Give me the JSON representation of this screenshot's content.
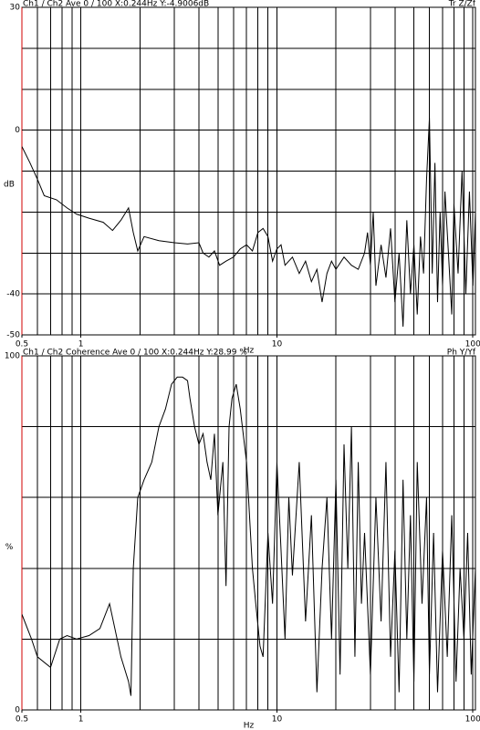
{
  "chart_data": [
    {
      "type": "line",
      "title": "Ch1 / Ch2  Ave 0 / 100  X:0.244Hz  Y:-4.9006dB",
      "mode_label": "Tr Z/Zf",
      "y_label": "dB",
      "x_label": "Hz",
      "x_scale": "log",
      "color": "#000000",
      "axis_color": "#d00000",
      "xlim": [
        0.5,
        103
      ],
      "xticks": [
        0.5,
        1,
        10,
        100
      ],
      "xgrid": [
        0.5,
        0.6,
        0.7,
        0.8,
        0.9,
        1,
        2,
        3,
        4,
        5,
        6,
        7,
        8,
        9,
        10,
        20,
        30,
        40,
        50,
        60,
        70,
        80,
        90,
        100
      ],
      "ylim": [
        -50,
        30
      ],
      "yticks": [
        -50,
        -40,
        0,
        30
      ],
      "ygrid": [
        -40,
        -30,
        -20,
        -10,
        0,
        10,
        20
      ],
      "x": [
        0.5,
        0.55,
        0.6,
        0.65,
        0.75,
        0.85,
        0.95,
        1.1,
        1.3,
        1.45,
        1.6,
        1.75,
        1.85,
        1.95,
        2.1,
        2.5,
        3,
        3.5,
        4,
        4.2,
        4.5,
        4.8,
        5.1,
        5.5,
        6,
        6.5,
        7,
        7.5,
        8,
        8.5,
        9,
        9.5,
        10,
        10.5,
        11,
        12,
        13,
        14,
        15,
        16,
        17,
        18,
        19,
        20,
        22,
        24,
        26,
        28,
        29,
        30,
        31,
        32,
        34,
        36,
        38,
        40,
        42,
        44,
        46,
        48,
        50,
        52,
        54,
        56,
        58,
        60,
        62,
        64,
        66,
        68,
        70,
        72,
        75,
        78,
        80,
        84,
        88,
        92,
        96,
        100,
        103
      ],
      "values": [
        -4,
        -8,
        -12,
        -16,
        -17,
        -19,
        -20.5,
        -21.5,
        -22.5,
        -24.5,
        -22,
        -19,
        -25,
        -29.5,
        -26,
        -27,
        -27.5,
        -27.8,
        -27.5,
        -30,
        -31,
        -29.5,
        -33,
        -32,
        -31,
        -29,
        -28,
        -29.5,
        -25,
        -24,
        -26,
        -32,
        -29,
        -28,
        -33,
        -31,
        -35,
        -32,
        -37,
        -34,
        -42,
        -35,
        -32,
        -34,
        -31,
        -33,
        -34,
        -30,
        -25,
        -33,
        -20,
        -38,
        -28,
        -36,
        -24,
        -42,
        -30,
        -48,
        -22,
        -40,
        -28,
        -45,
        -26,
        -35,
        -12,
        3,
        -35,
        -8,
        -42,
        -20,
        -38,
        -15,
        -30,
        -45,
        -18,
        -35,
        -10,
        -40,
        -15,
        -38,
        -20
      ]
    },
    {
      "type": "line",
      "title": "Ch1 / Ch2  Coherence Ave 0 / 100  X:0.244Hz  Y:28.99 %",
      "mode_label": "Ph Y/Yf",
      "y_label": "%",
      "x_label": "Hz",
      "x_scale": "log",
      "color": "#000000",
      "axis_color": "#d00000",
      "xlim": [
        0.5,
        103
      ],
      "xticks": [
        0.5,
        1,
        10,
        100
      ],
      "xgrid": [
        0.5,
        0.6,
        0.7,
        0.8,
        0.9,
        1,
        2,
        3,
        4,
        5,
        6,
        7,
        8,
        9,
        10,
        20,
        30,
        40,
        50,
        60,
        70,
        80,
        90,
        100
      ],
      "ylim": [
        0,
        100
      ],
      "yticks": [
        0,
        100
      ],
      "ygrid": [
        20,
        40,
        60,
        80
      ],
      "x": [
        0.5,
        0.56,
        0.6,
        0.7,
        0.78,
        0.85,
        0.95,
        1.1,
        1.25,
        1.4,
        1.6,
        1.75,
        1.8,
        1.85,
        1.95,
        2.1,
        2.3,
        2.5,
        2.7,
        2.9,
        3.1,
        3.3,
        3.5,
        3.6,
        3.8,
        4,
        4.2,
        4.4,
        4.6,
        4.8,
        5,
        5.3,
        5.5,
        5.7,
        5.9,
        6.2,
        6.5,
        7,
        7.5,
        7.8,
        8.2,
        8.5,
        9,
        9.5,
        10,
        10.5,
        11,
        11.5,
        12,
        13,
        14,
        15,
        16,
        17,
        18,
        19,
        20,
        21,
        22,
        23,
        24,
        25,
        26,
        27,
        28,
        30,
        32,
        34,
        36,
        38,
        40,
        42,
        44,
        46,
        48,
        50,
        52,
        55,
        58,
        60,
        63,
        66,
        70,
        74,
        78,
        82,
        86,
        90,
        94,
        98,
        103
      ],
      "values": [
        27,
        20,
        15,
        12,
        20,
        21,
        20,
        21,
        23,
        30,
        15,
        8,
        4,
        40,
        60,
        65,
        70,
        80,
        85,
        92,
        94,
        94,
        93,
        88,
        80,
        75,
        78,
        70,
        65,
        78,
        55,
        70,
        35,
        80,
        88,
        92,
        85,
        70,
        40,
        30,
        18,
        15,
        50,
        30,
        70,
        45,
        20,
        60,
        38,
        70,
        25,
        55,
        5,
        40,
        60,
        20,
        65,
        10,
        75,
        40,
        80,
        15,
        70,
        30,
        50,
        10,
        60,
        25,
        70,
        15,
        45,
        5,
        65,
        20,
        55,
        8,
        70,
        30,
        60,
        10,
        50,
        5,
        45,
        15,
        55,
        8,
        40,
        20,
        50,
        10,
        40
      ]
    }
  ]
}
